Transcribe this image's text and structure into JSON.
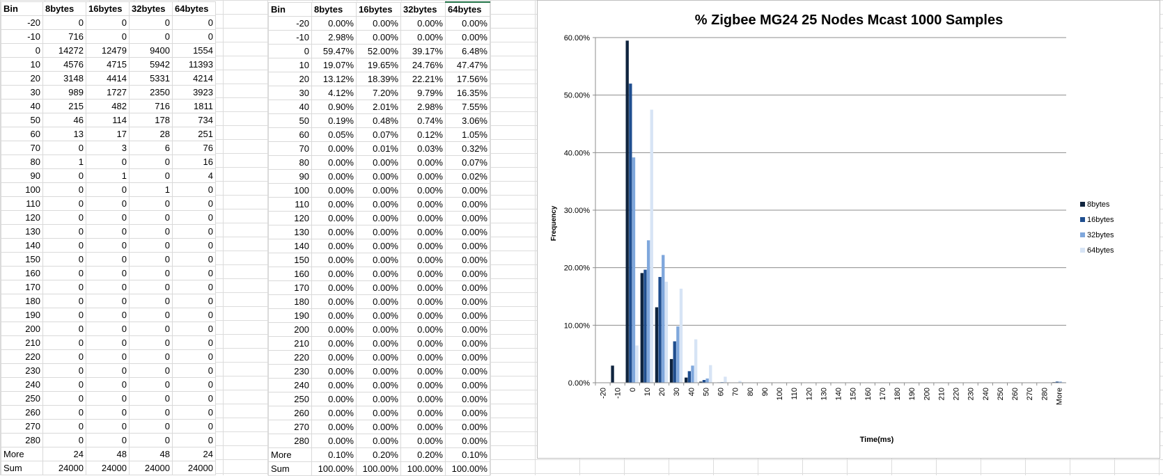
{
  "left_table": {
    "headers": [
      "Bin",
      "8bytes",
      "16bytes",
      "32bytes",
      "64bytes"
    ],
    "rows": [
      [
        "-20",
        "0",
        "0",
        "0",
        "0"
      ],
      [
        "-10",
        "716",
        "0",
        "0",
        "0"
      ],
      [
        "0",
        "14272",
        "12479",
        "9400",
        "1554"
      ],
      [
        "10",
        "4576",
        "4715",
        "5942",
        "11393"
      ],
      [
        "20",
        "3148",
        "4414",
        "5331",
        "4214"
      ],
      [
        "30",
        "989",
        "1727",
        "2350",
        "3923"
      ],
      [
        "40",
        "215",
        "482",
        "716",
        "1811"
      ],
      [
        "50",
        "46",
        "114",
        "178",
        "734"
      ],
      [
        "60",
        "13",
        "17",
        "28",
        "251"
      ],
      [
        "70",
        "0",
        "3",
        "6",
        "76"
      ],
      [
        "80",
        "1",
        "0",
        "0",
        "16"
      ],
      [
        "90",
        "0",
        "1",
        "0",
        "4"
      ],
      [
        "100",
        "0",
        "0",
        "1",
        "0"
      ],
      [
        "110",
        "0",
        "0",
        "0",
        "0"
      ],
      [
        "120",
        "0",
        "0",
        "0",
        "0"
      ],
      [
        "130",
        "0",
        "0",
        "0",
        "0"
      ],
      [
        "140",
        "0",
        "0",
        "0",
        "0"
      ],
      [
        "150",
        "0",
        "0",
        "0",
        "0"
      ],
      [
        "160",
        "0",
        "0",
        "0",
        "0"
      ],
      [
        "170",
        "0",
        "0",
        "0",
        "0"
      ],
      [
        "180",
        "0",
        "0",
        "0",
        "0"
      ],
      [
        "190",
        "0",
        "0",
        "0",
        "0"
      ],
      [
        "200",
        "0",
        "0",
        "0",
        "0"
      ],
      [
        "210",
        "0",
        "0",
        "0",
        "0"
      ],
      [
        "220",
        "0",
        "0",
        "0",
        "0"
      ],
      [
        "230",
        "0",
        "0",
        "0",
        "0"
      ],
      [
        "240",
        "0",
        "0",
        "0",
        "0"
      ],
      [
        "250",
        "0",
        "0",
        "0",
        "0"
      ],
      [
        "260",
        "0",
        "0",
        "0",
        "0"
      ],
      [
        "270",
        "0",
        "0",
        "0",
        "0"
      ],
      [
        "280",
        "0",
        "0",
        "0",
        "0"
      ],
      [
        "More",
        "24",
        "48",
        "48",
        "24"
      ],
      [
        "Sum",
        "24000",
        "24000",
        "24000",
        "24000"
      ]
    ]
  },
  "right_table": {
    "headers": [
      "Bin",
      "8bytes",
      "16bytes",
      "32bytes",
      "64bytes"
    ],
    "rows": [
      [
        "-20",
        "0.00%",
        "0.00%",
        "0.00%",
        "0.00%"
      ],
      [
        "-10",
        "2.98%",
        "0.00%",
        "0.00%",
        "0.00%"
      ],
      [
        "0",
        "59.47%",
        "52.00%",
        "39.17%",
        "6.48%"
      ],
      [
        "10",
        "19.07%",
        "19.65%",
        "24.76%",
        "47.47%"
      ],
      [
        "20",
        "13.12%",
        "18.39%",
        "22.21%",
        "17.56%"
      ],
      [
        "30",
        "4.12%",
        "7.20%",
        "9.79%",
        "16.35%"
      ],
      [
        "40",
        "0.90%",
        "2.01%",
        "2.98%",
        "7.55%"
      ],
      [
        "50",
        "0.19%",
        "0.48%",
        "0.74%",
        "3.06%"
      ],
      [
        "60",
        "0.05%",
        "0.07%",
        "0.12%",
        "1.05%"
      ],
      [
        "70",
        "0.00%",
        "0.01%",
        "0.03%",
        "0.32%"
      ],
      [
        "80",
        "0.00%",
        "0.00%",
        "0.00%",
        "0.07%"
      ],
      [
        "90",
        "0.00%",
        "0.00%",
        "0.00%",
        "0.02%"
      ],
      [
        "100",
        "0.00%",
        "0.00%",
        "0.00%",
        "0.00%"
      ],
      [
        "110",
        "0.00%",
        "0.00%",
        "0.00%",
        "0.00%"
      ],
      [
        "120",
        "0.00%",
        "0.00%",
        "0.00%",
        "0.00%"
      ],
      [
        "130",
        "0.00%",
        "0.00%",
        "0.00%",
        "0.00%"
      ],
      [
        "140",
        "0.00%",
        "0.00%",
        "0.00%",
        "0.00%"
      ],
      [
        "150",
        "0.00%",
        "0.00%",
        "0.00%",
        "0.00%"
      ],
      [
        "160",
        "0.00%",
        "0.00%",
        "0.00%",
        "0.00%"
      ],
      [
        "170",
        "0.00%",
        "0.00%",
        "0.00%",
        "0.00%"
      ],
      [
        "180",
        "0.00%",
        "0.00%",
        "0.00%",
        "0.00%"
      ],
      [
        "190",
        "0.00%",
        "0.00%",
        "0.00%",
        "0.00%"
      ],
      [
        "200",
        "0.00%",
        "0.00%",
        "0.00%",
        "0.00%"
      ],
      [
        "210",
        "0.00%",
        "0.00%",
        "0.00%",
        "0.00%"
      ],
      [
        "220",
        "0.00%",
        "0.00%",
        "0.00%",
        "0.00%"
      ],
      [
        "230",
        "0.00%",
        "0.00%",
        "0.00%",
        "0.00%"
      ],
      [
        "240",
        "0.00%",
        "0.00%",
        "0.00%",
        "0.00%"
      ],
      [
        "250",
        "0.00%",
        "0.00%",
        "0.00%",
        "0.00%"
      ],
      [
        "260",
        "0.00%",
        "0.00%",
        "0.00%",
        "0.00%"
      ],
      [
        "270",
        "0.00%",
        "0.00%",
        "0.00%",
        "0.00%"
      ],
      [
        "280",
        "0.00%",
        "0.00%",
        "0.00%",
        "0.00%"
      ],
      [
        "More",
        "0.10%",
        "0.20%",
        "0.20%",
        "0.10%"
      ],
      [
        "Sum",
        "100.00%",
        "100.00%",
        "100.00%",
        "100.00%"
      ]
    ]
  },
  "chart_data": {
    "type": "bar",
    "title": "% Zigbee MG24 25 Nodes Mcast 1000 Samples",
    "xlabel": "Time(ms)",
    "ylabel": "Frequency",
    "ylim": [
      0,
      0.6
    ],
    "yticks": [
      "0.00%",
      "10.00%",
      "20.00%",
      "30.00%",
      "40.00%",
      "50.00%",
      "60.00%"
    ],
    "grid": true,
    "legend_position": "right",
    "categories": [
      "-20",
      "-10",
      "0",
      "10",
      "20",
      "30",
      "40",
      "50",
      "60",
      "70",
      "80",
      "90",
      "100",
      "110",
      "120",
      "130",
      "140",
      "150",
      "160",
      "170",
      "180",
      "190",
      "200",
      "210",
      "220",
      "230",
      "240",
      "250",
      "260",
      "270",
      "280",
      "More"
    ],
    "series": [
      {
        "name": "8bytes",
        "color": "#0f243e",
        "values": [
          0,
          0.0298,
          0.5947,
          0.1907,
          0.1312,
          0.0412,
          0.009,
          0.0019,
          0.0005,
          0,
          0,
          0,
          0,
          0,
          0,
          0,
          0,
          0,
          0,
          0,
          0,
          0,
          0,
          0,
          0,
          0,
          0,
          0,
          0,
          0,
          0,
          0.001
        ]
      },
      {
        "name": "16bytes",
        "color": "#1f4e8f",
        "values": [
          0,
          0,
          0.52,
          0.1965,
          0.1839,
          0.072,
          0.0201,
          0.0048,
          0.0007,
          0.0001,
          0,
          0,
          0,
          0,
          0,
          0,
          0,
          0,
          0,
          0,
          0,
          0,
          0,
          0,
          0,
          0,
          0,
          0,
          0,
          0,
          0,
          0.002
        ]
      },
      {
        "name": "32bytes",
        "color": "#7fa7dc",
        "values": [
          0,
          0,
          0.3917,
          0.2476,
          0.2221,
          0.0979,
          0.0298,
          0.0074,
          0.0012,
          0.0003,
          0,
          0,
          0,
          0,
          0,
          0,
          0,
          0,
          0,
          0,
          0,
          0,
          0,
          0,
          0,
          0,
          0,
          0,
          0,
          0,
          0,
          0.002
        ]
      },
      {
        "name": "64bytes",
        "color": "#d7e4f5",
        "values": [
          0,
          0,
          0.0648,
          0.4747,
          0.1756,
          0.1635,
          0.0755,
          0.0306,
          0.0105,
          0.0032,
          0.0007,
          0.0002,
          0,
          0,
          0,
          0,
          0,
          0,
          0,
          0,
          0,
          0,
          0,
          0,
          0,
          0,
          0,
          0,
          0,
          0,
          0,
          0.001
        ]
      }
    ]
  }
}
